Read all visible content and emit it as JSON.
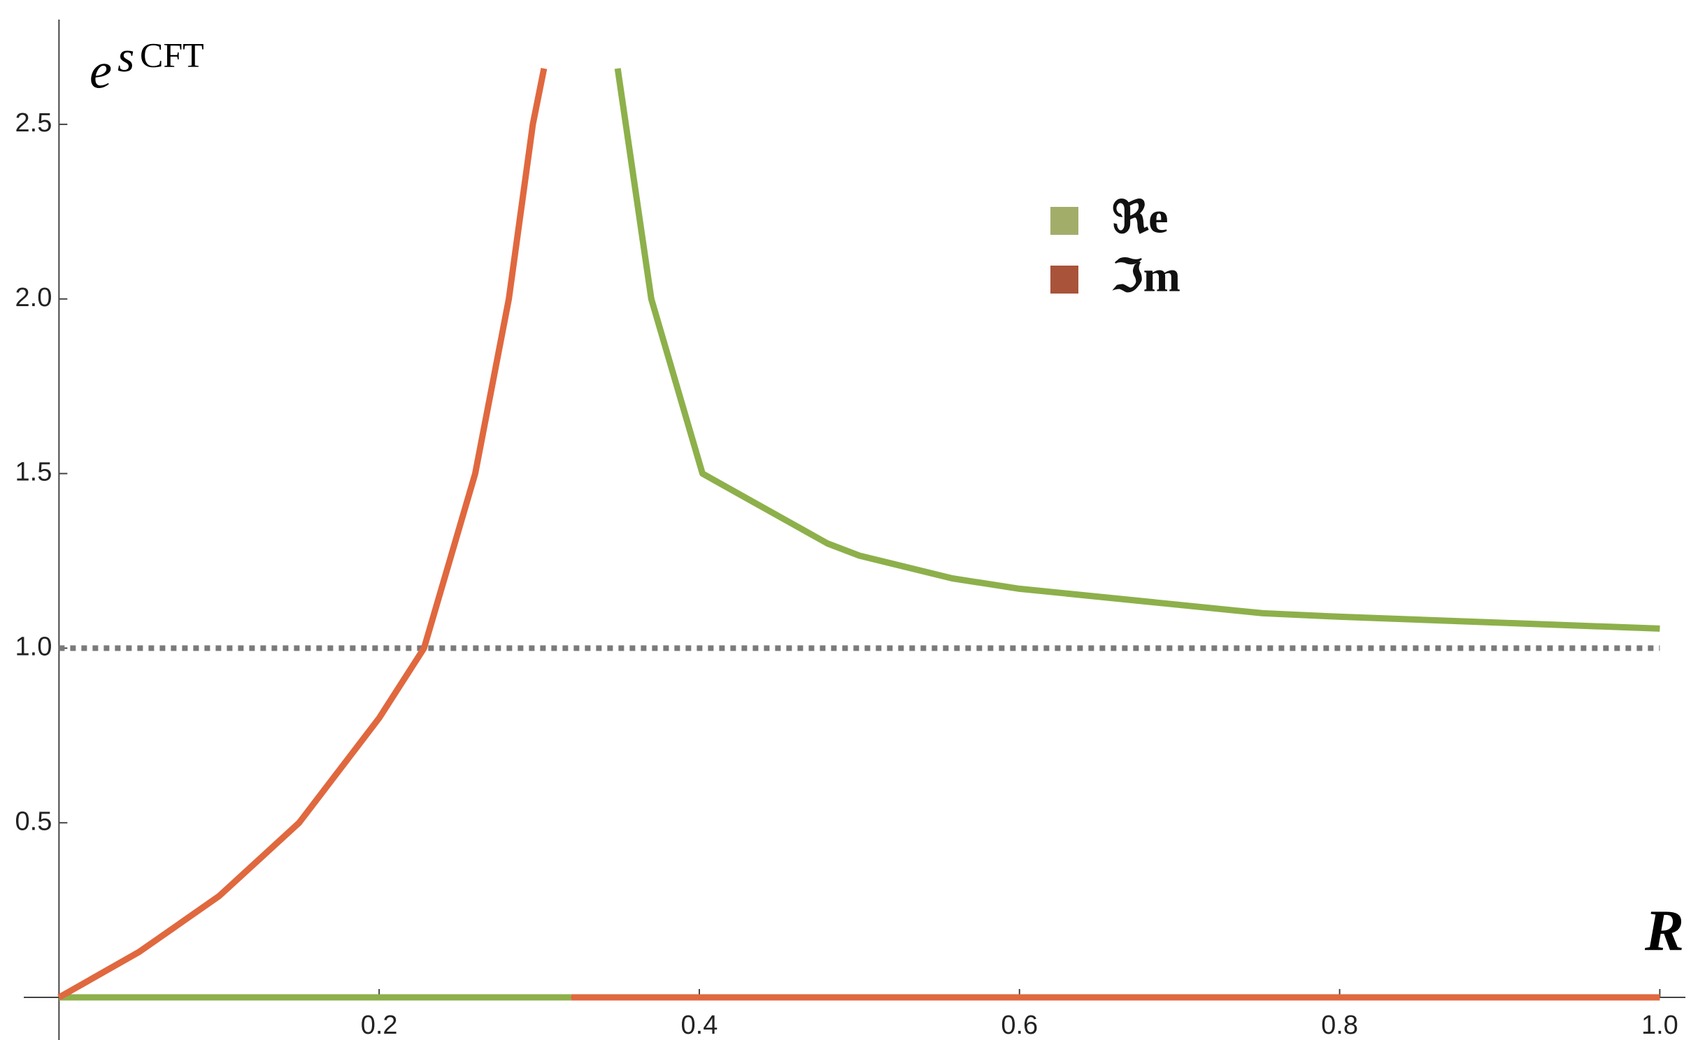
{
  "chart_data": {
    "type": "line",
    "y_label": {
      "base": "e",
      "sup": "s",
      "sub": "CFT"
    },
    "x_label": "R",
    "xlim": [
      -0.022,
      1.016
    ],
    "ylim": [
      -0.146,
      2.8
    ],
    "xticks": [
      0.2,
      0.4,
      0.6,
      0.8,
      {
        "value": 1.0,
        "label": "1.0"
      }
    ],
    "yticks": [
      0.5,
      {
        "value": 1.0,
        "label": "1.0"
      },
      1.5,
      {
        "value": 2.0,
        "label": "2.0"
      },
      2.5
    ],
    "reference_line": {
      "value": 1.0,
      "color": "#7a7a7a",
      "style": "dotted"
    },
    "series": [
      {
        "name": "ℜe",
        "color": "#8db04b",
        "legend_color": "#a3ad6a",
        "x": [
          0,
          0.32,
          0.33,
          0.349,
          0.37,
          0.402,
          0.48,
          0.5,
          0.558,
          0.6,
          0.752,
          0.8,
          1.0
        ],
        "values": [
          0,
          0,
          null,
          2.66,
          2.0,
          1.5,
          1.3,
          1.265,
          1.2,
          1.17,
          1.1,
          1.09,
          1.056
        ]
      },
      {
        "name": "ℑm",
        "color": "#e0683f",
        "legend_color": "#a9533a",
        "x": [
          0,
          0.05,
          0.1,
          0.15,
          0.2,
          0.228,
          0.26,
          0.281,
          0.296,
          0.303,
          0.31,
          0.32,
          1.0
        ],
        "values": [
          0,
          0.13,
          0.29,
          0.5,
          0.8,
          1.0,
          1.5,
          2.0,
          2.5,
          2.66,
          null,
          0,
          0
        ]
      }
    ]
  }
}
